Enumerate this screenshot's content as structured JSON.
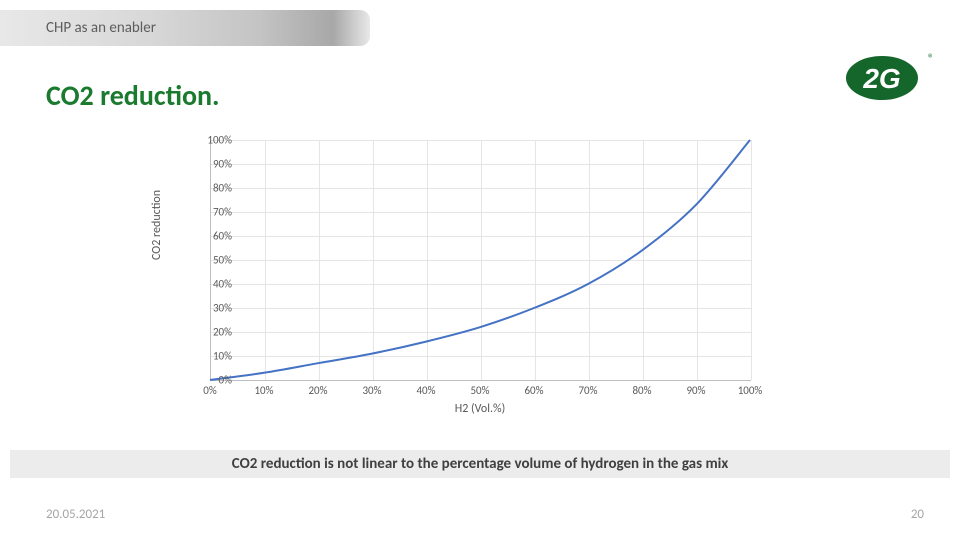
{
  "header": {
    "tab_label": "CHP as an enabler"
  },
  "logo": {
    "text": "2G",
    "registered_mark": "®",
    "fill_color": "#14662a",
    "text_color": "#ffffff"
  },
  "title": "CO2 reduction.",
  "title_color": "#1a7a2e",
  "chart": {
    "type": "line",
    "xlabel": "H2 (Vol.%)",
    "ylabel": "CO2 reduction",
    "xlim": [
      0,
      100
    ],
    "ylim": [
      0,
      100
    ],
    "xtick_step": 10,
    "ytick_step": 10,
    "xticks": [
      "0%",
      "10%",
      "20%",
      "30%",
      "40%",
      "50%",
      "60%",
      "70%",
      "80%",
      "90%",
      "100%"
    ],
    "yticks": [
      "0%",
      "10%",
      "20%",
      "30%",
      "40%",
      "50%",
      "60%",
      "70%",
      "80%",
      "90%",
      "100%"
    ],
    "line_color": "#4472c4",
    "line_width": 2,
    "grid_color": "#e5e5e5",
    "axis_color": "#bfbfbf",
    "tick_font_color": "#595959",
    "tick_fontsize": 11,
    "label_fontsize": 12,
    "background_color": "#ffffff",
    "series": [
      {
        "x": 0,
        "y": 0
      },
      {
        "x": 10,
        "y": 3
      },
      {
        "x": 20,
        "y": 7
      },
      {
        "x": 30,
        "y": 11
      },
      {
        "x": 40,
        "y": 16
      },
      {
        "x": 50,
        "y": 22
      },
      {
        "x": 60,
        "y": 30
      },
      {
        "x": 70,
        "y": 40
      },
      {
        "x": 80,
        "y": 54
      },
      {
        "x": 90,
        "y": 73
      },
      {
        "x": 100,
        "y": 100
      }
    ]
  },
  "caption": "CO2 reduction is not linear to the percentage volume of hydrogen in the gas mix",
  "footer": {
    "date": "20.05.2021",
    "page": "20"
  }
}
